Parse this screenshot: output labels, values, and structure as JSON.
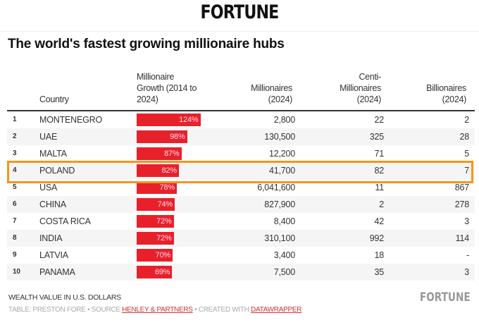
{
  "brand": "FORTUNE",
  "chart_data": {
    "type": "table",
    "title": "The world's fastest growing millionaire hubs",
    "columns": [
      "",
      "Country",
      "Millionaire Growth (2014 to 2024)",
      "Millionaires (2024)",
      "Centi-Millionaires (2024)",
      "Billionaires (2024)"
    ],
    "bar_color": "#e8202a",
    "highlight_color": "#f7941d",
    "highlighted_country": "POLAND",
    "rows": [
      {
        "rank": "1",
        "country": "MONTENEGRO",
        "growth": 124,
        "growth_label": "124%",
        "millionaires": "2,800",
        "centi": "22",
        "billionaires": "2"
      },
      {
        "rank": "2",
        "country": "UAE",
        "growth": 98,
        "growth_label": "98%",
        "millionaires": "130,500",
        "centi": "325",
        "billionaires": "28"
      },
      {
        "rank": "3",
        "country": "MALTA",
        "growth": 87,
        "growth_label": "87%",
        "millionaires": "12,200",
        "centi": "71",
        "billionaires": "5"
      },
      {
        "rank": "4",
        "country": "POLAND",
        "growth": 82,
        "growth_label": "82%",
        "millionaires": "41,700",
        "centi": "82",
        "billionaires": "7"
      },
      {
        "rank": "5",
        "country": "USA",
        "growth": 78,
        "growth_label": "78%",
        "millionaires": "6,041,600",
        "centi": "11",
        "billionaires": "867"
      },
      {
        "rank": "6",
        "country": "CHINA",
        "growth": 74,
        "growth_label": "74%",
        "millionaires": "827,900",
        "centi": "2",
        "billionaires": "278"
      },
      {
        "rank": "7",
        "country": "COSTA RICA",
        "growth": 72,
        "growth_label": "72%",
        "millionaires": "8,400",
        "centi": "42",
        "billionaires": "3"
      },
      {
        "rank": "8",
        "country": "INDIA",
        "growth": 72,
        "growth_label": "72%",
        "millionaires": "310,100",
        "centi": "992",
        "billionaires": "114"
      },
      {
        "rank": "9",
        "country": "LATVIA",
        "growth": 70,
        "growth_label": "70%",
        "millionaires": "3,400",
        "centi": "18",
        "billionaires": "-"
      },
      {
        "rank": "10",
        "country": "PANAMA",
        "growth": 69,
        "growth_label": "69%",
        "millionaires": "7,500",
        "centi": "35",
        "billionaires": "3"
      }
    ]
  },
  "header": {
    "country": "Country",
    "growth": [
      "Millionaire",
      "Growth (2014 to",
      "2024)"
    ],
    "millionaires": [
      "Millionaires",
      "(2024)"
    ],
    "centi": [
      "Centi-",
      "Millionaires",
      "(2024)"
    ],
    "billionaires": [
      "Billionaires",
      "(2024)"
    ]
  },
  "footer": {
    "note": "WEALTH VALUE IN U.S. DOLLARS",
    "table_by": "TABLE: PRESTON FORE • SOURCE ",
    "source": "HENLEY & PARTNERS",
    "created": " • CREATED WITH ",
    "tool": "DATAWRAPPER"
  }
}
